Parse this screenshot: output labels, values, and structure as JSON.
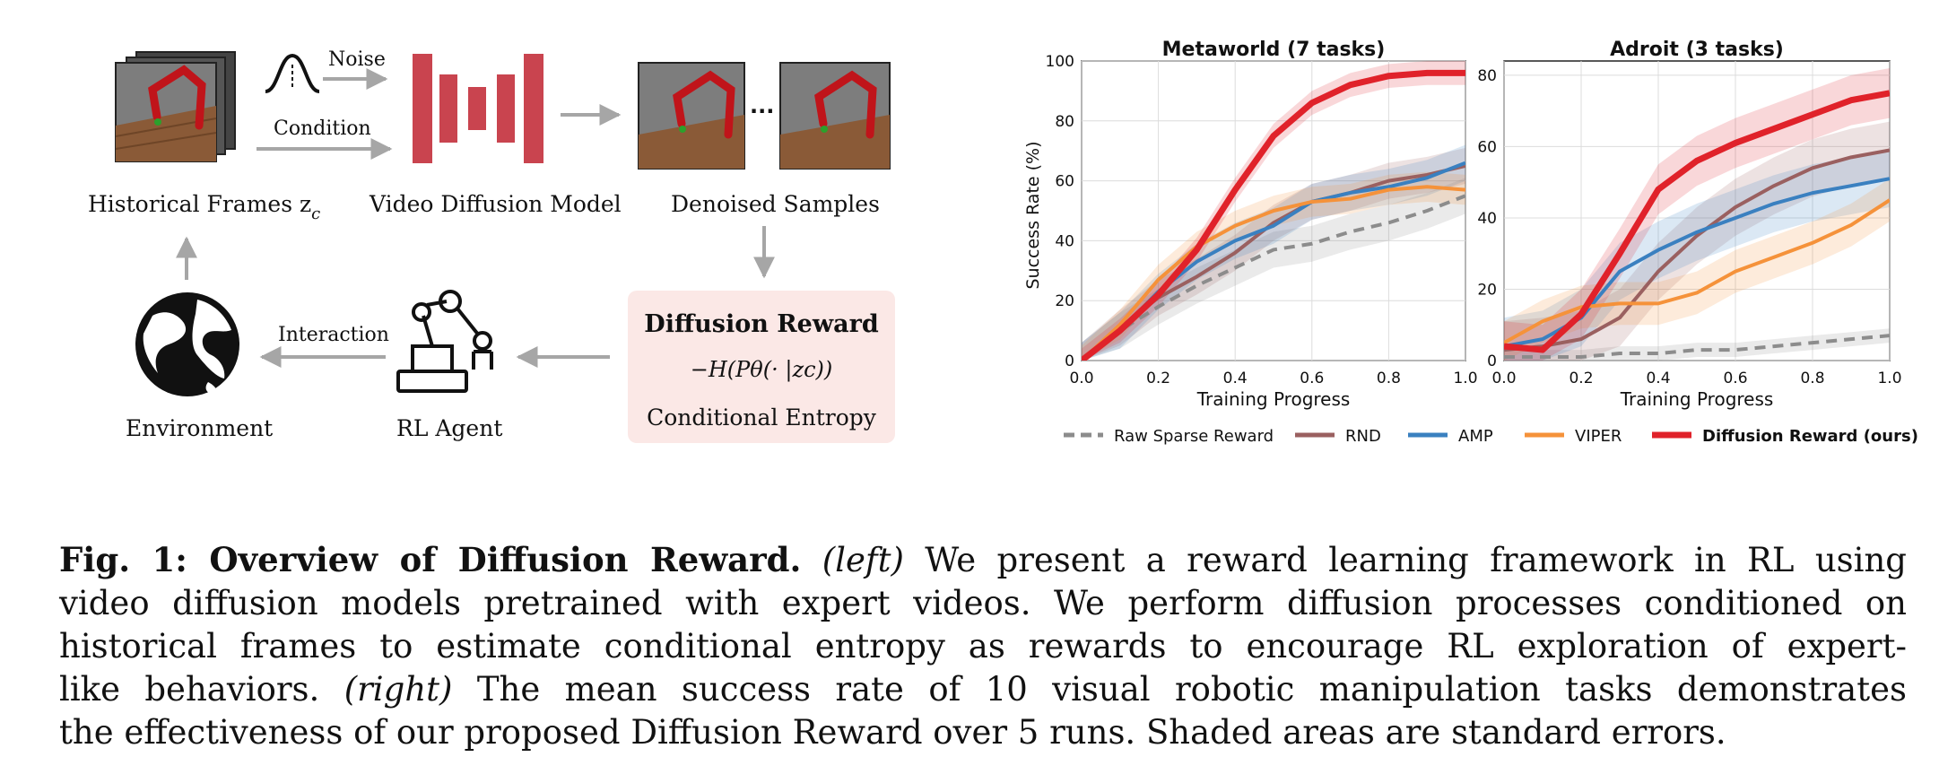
{
  "diagram": {
    "historical_frames_label": "Historical Frames z",
    "historical_frames_sub": "c",
    "noise_label": "Noise",
    "condition_label": "Condition",
    "video_diffusion_label": "Video Diffusion Model",
    "denoised_samples_label": "Denoised Samples",
    "ellipsis": "···",
    "reward_title": "Diffusion Reward",
    "reward_formula": "−H(Pθ(· |zc))",
    "reward_subtitle": "Conditional Entropy",
    "interaction_label": "Interaction",
    "environment_label": "Environment",
    "agent_label": "RL Agent",
    "reward_box_color": "#fbe8e6",
    "model_color": "#c9444f"
  },
  "chart_data": [
    {
      "type": "line",
      "title": "Metaworld (7 tasks)",
      "xlabel": "Training Progress",
      "ylabel": "Success Rate (%)",
      "xlim": [
        0.0,
        1.0
      ],
      "ylim": [
        0,
        100
      ],
      "xticks": [
        "0.0",
        "0.2",
        "0.4",
        "0.6",
        "0.8",
        "1.0"
      ],
      "yticks": [
        "0",
        "20",
        "40",
        "60",
        "80",
        "100"
      ],
      "grid": true,
      "x": [
        0.0,
        0.1,
        0.2,
        0.3,
        0.4,
        0.5,
        0.6,
        0.7,
        0.8,
        0.9,
        1.0
      ],
      "series": [
        {
          "name": "Raw Sparse Reward",
          "values": [
            0,
            10,
            18,
            25,
            31,
            37,
            39,
            43,
            46,
            50,
            55
          ],
          "err": 6
        },
        {
          "name": "RND",
          "values": [
            0,
            11,
            21,
            28,
            36,
            46,
            53,
            56,
            60,
            62,
            65
          ],
          "err": 6
        },
        {
          "name": "AMP",
          "values": [
            0,
            10,
            23,
            33,
            40,
            45,
            53,
            56,
            58,
            61,
            66
          ],
          "err": 6
        },
        {
          "name": "VIPER",
          "values": [
            0,
            12,
            27,
            38,
            45,
            50,
            53,
            54,
            57,
            58,
            57
          ],
          "err": 5
        },
        {
          "name": "Diffusion Reward (ours)",
          "values": [
            0,
            10,
            22,
            37,
            57,
            75,
            86,
            92,
            95,
            96,
            96
          ],
          "err": 4
        }
      ]
    },
    {
      "type": "line",
      "title": "Adroit (3 tasks)",
      "xlabel": "Training Progress",
      "ylabel": "",
      "xlim": [
        0.0,
        1.0
      ],
      "ylim": [
        0,
        84
      ],
      "xticks": [
        "0.0",
        "0.2",
        "0.4",
        "0.6",
        "0.8",
        "1.0"
      ],
      "yticks": [
        "0",
        "20",
        "40",
        "60",
        "80"
      ],
      "grid": true,
      "x": [
        0.0,
        0.1,
        0.2,
        0.3,
        0.4,
        0.5,
        0.6,
        0.7,
        0.8,
        0.9,
        1.0
      ],
      "series": [
        {
          "name": "Raw Sparse Reward",
          "values": [
            1,
            1,
            1,
            2,
            2,
            3,
            3,
            4,
            5,
            6,
            7
          ],
          "err": 2
        },
        {
          "name": "RND",
          "values": [
            3,
            4,
            6,
            12,
            25,
            35,
            43,
            49,
            54,
            57,
            59
          ],
          "err": 8
        },
        {
          "name": "AMP",
          "values": [
            4,
            6,
            12,
            25,
            31,
            36,
            40,
            44,
            47,
            49,
            51
          ],
          "err": 8
        },
        {
          "name": "VIPER",
          "values": [
            5,
            11,
            15,
            16,
            16,
            19,
            25,
            29,
            33,
            38,
            45
          ],
          "err": 6
        },
        {
          "name": "Diffusion Reward (ours)",
          "values": [
            4,
            3,
            13,
            30,
            48,
            56,
            61,
            65,
            69,
            73,
            75
          ],
          "err": 7
        }
      ]
    }
  ],
  "legend": [
    {
      "name": "Raw Sparse Reward",
      "color": "#8c8c8c",
      "dashed": true
    },
    {
      "name": "RND",
      "color": "#9a6060",
      "dashed": false
    },
    {
      "name": "AMP",
      "color": "#3a80c0",
      "dashed": false
    },
    {
      "name": "VIPER",
      "color": "#f5923a",
      "dashed": false
    },
    {
      "name": "Diffusion Reward (ours)",
      "color": "#e0222a",
      "dashed": false,
      "bold": true
    }
  ],
  "caption": {
    "label": "Fig. 1: Overview of Diffusion Reward.",
    "left": "(left)",
    "text1": " We present a reward learning framework in RL using",
    "line2": "video diffusion models pretrained with expert videos. We perform diffusion processes conditioned on",
    "line3": "historical frames to estimate conditional entropy as rewards to encourage RL exploration of expert-",
    "line4a": "like behaviors. ",
    "right": "(right)",
    "line4b": " The mean success rate of 10 visual robotic manipulation tasks demonstrates",
    "line5": "the effectiveness of our proposed Diffusion Reward over 5 runs. Shaded areas are standard errors."
  }
}
